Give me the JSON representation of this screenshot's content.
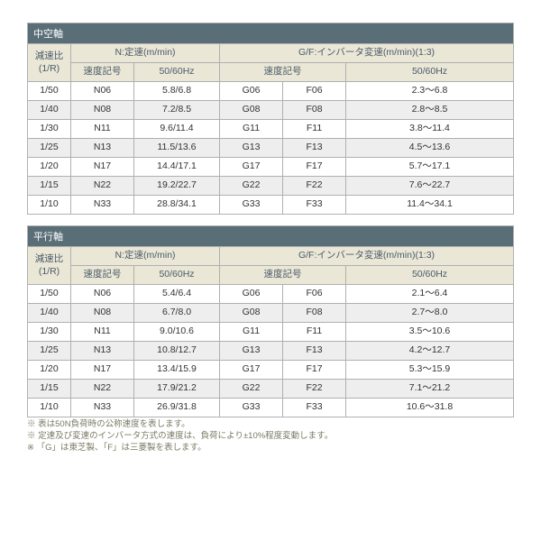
{
  "sections": [
    {
      "title": "中空軸",
      "header": {
        "ratio": "減速比\n(1/R)",
        "n_group": "N:定速(m/min)",
        "n_code": "速度記号",
        "n_hz": "50/60Hz",
        "gf_group": "G/F:インバータ変速(m/min)(1:3)",
        "gf_code": "速度記号",
        "gf_hz": "50/60Hz"
      },
      "rows": [
        {
          "ratio": "1/50",
          "ncode": "N06",
          "nhz": "5.8/6.8",
          "g": "G06",
          "f": "F06",
          "gfhz": "2.3～6.8"
        },
        {
          "ratio": "1/40",
          "ncode": "N08",
          "nhz": "7.2/8.5",
          "g": "G08",
          "f": "F08",
          "gfhz": "2.8～8.5"
        },
        {
          "ratio": "1/30",
          "ncode": "N11",
          "nhz": "9.6/11.4",
          "g": "G11",
          "f": "F11",
          "gfhz": "3.8～11.4"
        },
        {
          "ratio": "1/25",
          "ncode": "N13",
          "nhz": "11.5/13.6",
          "g": "G13",
          "f": "F13",
          "gfhz": "4.5～13.6"
        },
        {
          "ratio": "1/20",
          "ncode": "N17",
          "nhz": "14.4/17.1",
          "g": "G17",
          "f": "F17",
          "gfhz": "5.7～17.1"
        },
        {
          "ratio": "1/15",
          "ncode": "N22",
          "nhz": "19.2/22.7",
          "g": "G22",
          "f": "F22",
          "gfhz": "7.6～22.7"
        },
        {
          "ratio": "1/10",
          "ncode": "N33",
          "nhz": "28.8/34.1",
          "g": "G33",
          "f": "F33",
          "gfhz": "11.4～34.1"
        }
      ]
    },
    {
      "title": "平行軸",
      "header": {
        "ratio": "減速比\n(1/R)",
        "n_group": "N:定速(m/min)",
        "n_code": "速度記号",
        "n_hz": "50/60Hz",
        "gf_group": "G/F:インバータ変速(m/min)(1:3)",
        "gf_code": "速度記号",
        "gf_hz": "50/60Hz"
      },
      "rows": [
        {
          "ratio": "1/50",
          "ncode": "N06",
          "nhz": "5.4/6.4",
          "g": "G06",
          "f": "F06",
          "gfhz": "2.1～6.4"
        },
        {
          "ratio": "1/40",
          "ncode": "N08",
          "nhz": "6.7/8.0",
          "g": "G08",
          "f": "F08",
          "gfhz": "2.7～8.0"
        },
        {
          "ratio": "1/30",
          "ncode": "N11",
          "nhz": "9.0/10.6",
          "g": "G11",
          "f": "F11",
          "gfhz": "3.5～10.6"
        },
        {
          "ratio": "1/25",
          "ncode": "N13",
          "nhz": "10.8/12.7",
          "g": "G13",
          "f": "F13",
          "gfhz": "4.2～12.7"
        },
        {
          "ratio": "1/20",
          "ncode": "N17",
          "nhz": "13.4/15.9",
          "g": "G17",
          "f": "F17",
          "gfhz": "5.3～15.9"
        },
        {
          "ratio": "1/15",
          "ncode": "N22",
          "nhz": "17.9/21.2",
          "g": "G22",
          "f": "F22",
          "gfhz": "7.1～21.2"
        },
        {
          "ratio": "1/10",
          "ncode": "N33",
          "nhz": "26.9/31.8",
          "g": "G33",
          "f": "F33",
          "gfhz": "10.6～31.8"
        }
      ]
    }
  ],
  "notes": [
    "※ 表は50N負荷時の公称速度を表します。",
    "※ 定速及び変速のインバータ方式の速度は、負荷により±10%程度変動します。",
    "※ 「G」は東芝製、「F」は三菱製を表します。"
  ]
}
